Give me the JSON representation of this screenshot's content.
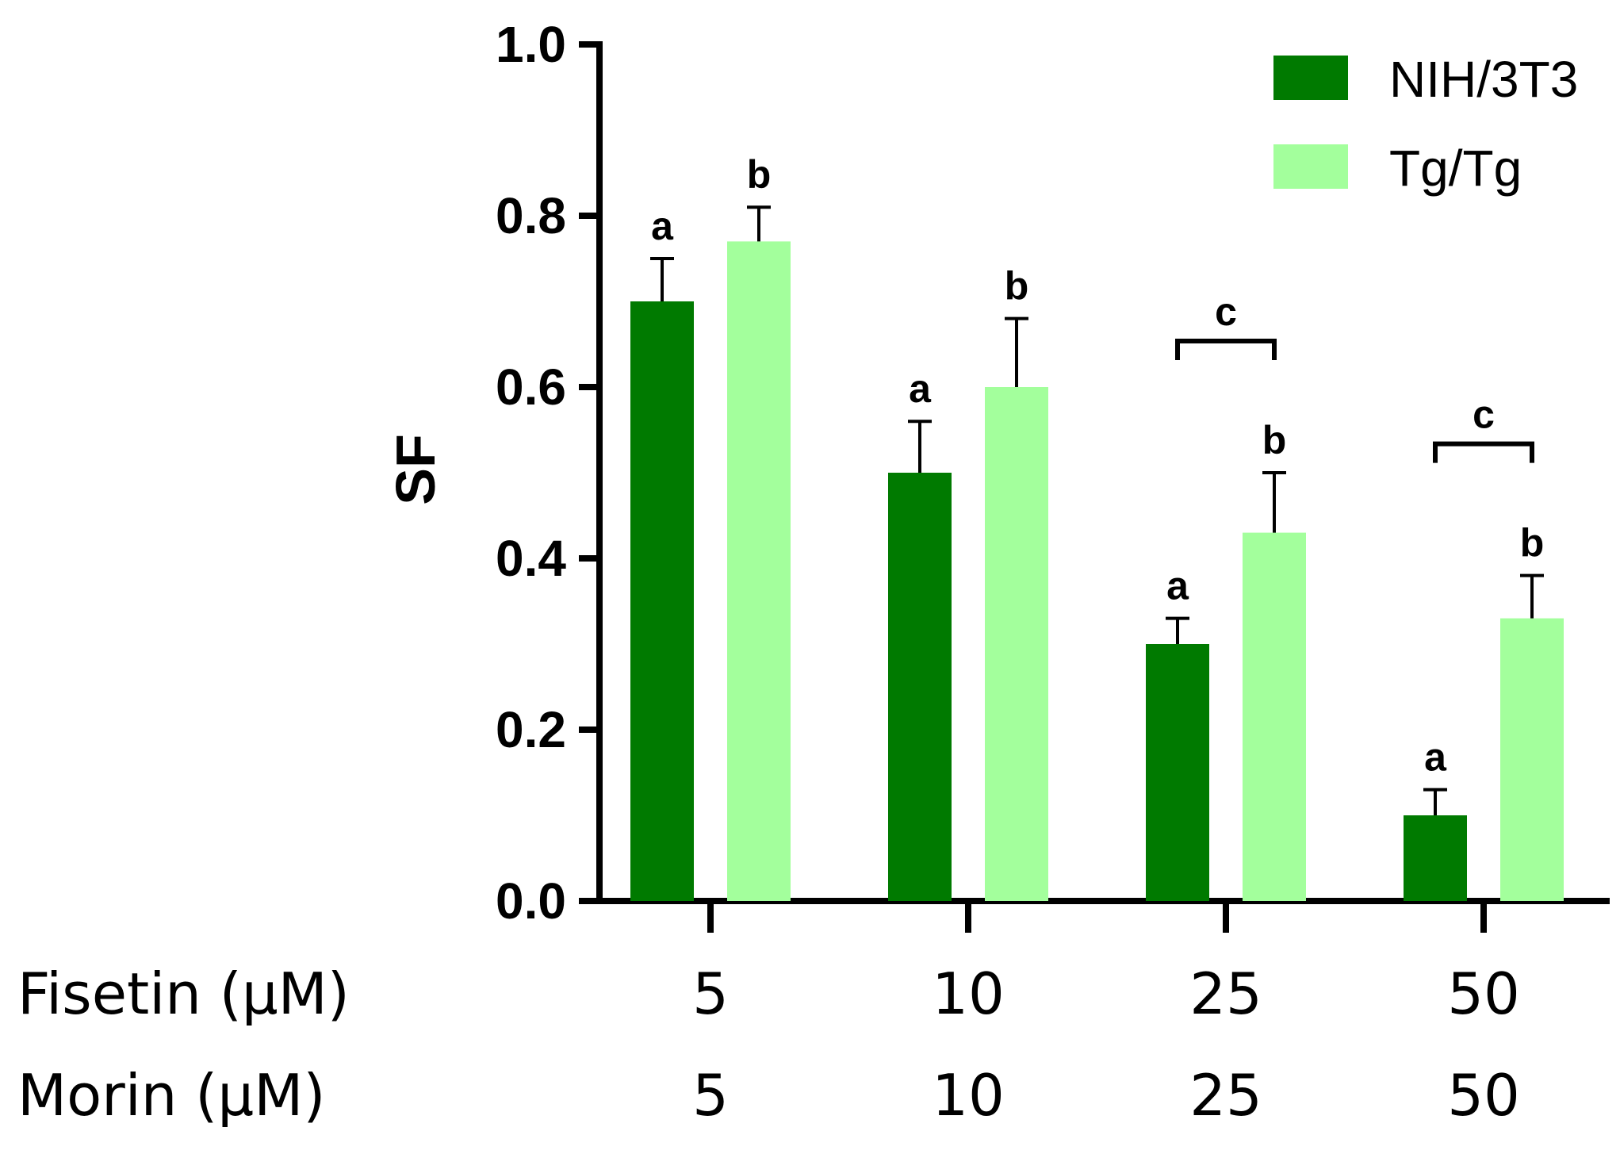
{
  "chart_data": {
    "type": "bar",
    "title": "",
    "xlabel": "",
    "ylabel": "SF",
    "ylim": [
      0,
      1.0
    ],
    "yticks": [
      "0.0",
      "0.2",
      "0.4",
      "0.6",
      "0.8",
      "1.0"
    ],
    "grid": false,
    "legend_position": "top-right",
    "category_rows": [
      {
        "label": "Fisetin (µM)",
        "values": [
          "5",
          "10",
          "25",
          "50"
        ]
      },
      {
        "label": "Morin (µM)",
        "values": [
          "5",
          "10",
          "25",
          "50"
        ]
      }
    ],
    "categories": [
      "5",
      "10",
      "25",
      "50"
    ],
    "series": [
      {
        "name": "NIH/3T3",
        "color": "#007a00",
        "values": [
          0.7,
          0.5,
          0.3,
          0.1
        ],
        "errors": [
          0.05,
          0.06,
          0.03,
          0.03
        ],
        "labels": [
          "a",
          "a",
          "a",
          "a"
        ]
      },
      {
        "name": "Tg/Tg",
        "color": "#a3ff9c",
        "values": [
          0.77,
          0.6,
          0.43,
          0.33
        ],
        "errors": [
          0.04,
          0.08,
          0.07,
          0.05
        ],
        "labels": [
          "b",
          "b",
          "b",
          "b"
        ]
      }
    ],
    "comparisons": [
      {
        "category_index": 2,
        "label": "c"
      },
      {
        "category_index": 3,
        "label": "c"
      }
    ]
  }
}
